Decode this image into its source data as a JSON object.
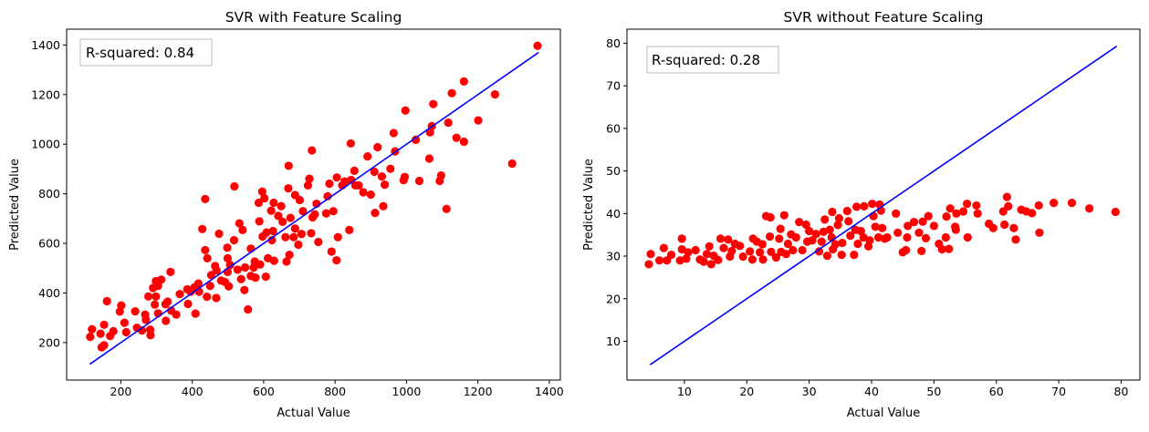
{
  "chart_data": [
    {
      "type": "scatter",
      "title": "SVR with Feature Scaling",
      "xlabel": "Actual Value",
      "ylabel": "Predicted Value",
      "xlim": [
        48,
        1431
      ],
      "ylim": [
        49,
        1464
      ],
      "xticks": [
        200,
        400,
        600,
        800,
        1000,
        1200,
        1400
      ],
      "yticks": [
        200,
        400,
        600,
        800,
        1000,
        1200,
        1400
      ],
      "annotation": "R-squared: 0.84",
      "grid": false,
      "point_color": "#ff0000",
      "line_color": "#0000ff",
      "reference_line": {
        "x": [
          113,
          1370
        ],
        "y": [
          113,
          1370
        ]
      },
      "points": [
        [
          114,
          223
        ],
        [
          119,
          254
        ],
        [
          143,
          236
        ],
        [
          146,
          181
        ],
        [
          153,
          189
        ],
        [
          153,
          272
        ],
        [
          161,
          367
        ],
        [
          170,
          227
        ],
        [
          179,
          246
        ],
        [
          197,
          325
        ],
        [
          201,
          350
        ],
        [
          210,
          280
        ],
        [
          215,
          242
        ],
        [
          240,
          326
        ],
        [
          245,
          260
        ],
        [
          259,
          249
        ],
        [
          268,
          313
        ],
        [
          270,
          292
        ],
        [
          277,
          386
        ],
        [
          282,
          252
        ],
        [
          283,
          230
        ],
        [
          290,
          420
        ],
        [
          295,
          353
        ],
        [
          298,
          448
        ],
        [
          298,
          386
        ],
        [
          304,
          429
        ],
        [
          304,
          318
        ],
        [
          313,
          454
        ],
        [
          325,
          355
        ],
        [
          326,
          288
        ],
        [
          331,
          365
        ],
        [
          339,
          485
        ],
        [
          341,
          329
        ],
        [
          355,
          313
        ],
        [
          365,
          396
        ],
        [
          386,
          415
        ],
        [
          388,
          356
        ],
        [
          395,
          405
        ],
        [
          406,
          423
        ],
        [
          409,
          317
        ],
        [
          417,
          438
        ],
        [
          419,
          405
        ],
        [
          428,
          658
        ],
        [
          436,
          779
        ],
        [
          436,
          573
        ],
        [
          441,
          385
        ],
        [
          442,
          540
        ],
        [
          450,
          429
        ],
        [
          453,
          472
        ],
        [
          464,
          509
        ],
        [
          467,
          380
        ],
        [
          468,
          491
        ],
        [
          475,
          639
        ],
        [
          481,
          450
        ],
        [
          492,
          444
        ],
        [
          498,
          583
        ],
        [
          499,
          540
        ],
        [
          499,
          485
        ],
        [
          502,
          427
        ],
        [
          506,
          513
        ],
        [
          517,
          613
        ],
        [
          518,
          830
        ],
        [
          527,
          494
        ],
        [
          532,
          681
        ],
        [
          537,
          456
        ],
        [
          541,
          654
        ],
        [
          546,
          412
        ],
        [
          548,
          503
        ],
        [
          556,
          334
        ],
        [
          564,
          579
        ],
        [
          564,
          469
        ],
        [
          572,
          503
        ],
        [
          575,
          527
        ],
        [
          577,
          462
        ],
        [
          586,
          764
        ],
        [
          588,
          689
        ],
        [
          590,
          515
        ],
        [
          596,
          809
        ],
        [
          597,
          628
        ],
        [
          602,
          782
        ],
        [
          606,
          466
        ],
        [
          608,
          644
        ],
        [
          612,
          540
        ],
        [
          621,
          732
        ],
        [
          623,
          613
        ],
        [
          626,
          650
        ],
        [
          628,
          764
        ],
        [
          629,
          530
        ],
        [
          641,
          711
        ],
        [
          649,
          750
        ],
        [
          653,
          687
        ],
        [
          661,
          625
        ],
        [
          664,
          527
        ],
        [
          669,
          822
        ],
        [
          670,
          913
        ],
        [
          672,
          554
        ],
        [
          675,
          703
        ],
        [
          684,
          625
        ],
        [
          688,
          795
        ],
        [
          688,
          660
        ],
        [
          697,
          595
        ],
        [
          701,
          775
        ],
        [
          706,
          638
        ],
        [
          710,
          730
        ],
        [
          724,
          834
        ],
        [
          728,
          861
        ],
        [
          733,
          641
        ],
        [
          735,
          975
        ],
        [
          737,
          705
        ],
        [
          743,
          717
        ],
        [
          748,
          760
        ],
        [
          753,
          606
        ],
        [
          775,
          721
        ],
        [
          779,
          790
        ],
        [
          784,
          841
        ],
        [
          790,
          567
        ],
        [
          795,
          730
        ],
        [
          804,
          532
        ],
        [
          805,
          866
        ],
        [
          808,
          625
        ],
        [
          820,
          834
        ],
        [
          827,
          850
        ],
        [
          840,
          654
        ],
        [
          844,
          1003
        ],
        [
          845,
          856
        ],
        [
          854,
          893
        ],
        [
          857,
          834
        ],
        [
          866,
          834
        ],
        [
          879,
          806
        ],
        [
          891,
          951
        ],
        [
          900,
          797
        ],
        [
          910,
          889
        ],
        [
          912,
          723
        ],
        [
          919,
          988
        ],
        [
          931,
          870
        ],
        [
          935,
          750
        ],
        [
          939,
          837
        ],
        [
          955,
          901
        ],
        [
          964,
          1045
        ],
        [
          968,
          971
        ],
        [
          992,
          855
        ],
        [
          995,
          868
        ],
        [
          997,
          1136
        ],
        [
          1026,
          1018
        ],
        [
          1036,
          852
        ],
        [
          1064,
          942
        ],
        [
          1066,
          1048
        ],
        [
          1071,
          1073
        ],
        [
          1075,
          1162
        ],
        [
          1093,
          852
        ],
        [
          1097,
          874
        ],
        [
          1112,
          739
        ],
        [
          1117,
          1087
        ],
        [
          1127,
          1206
        ],
        [
          1140,
          1026
        ],
        [
          1161,
          1253
        ],
        [
          1161,
          1010
        ],
        [
          1201,
          1096
        ],
        [
          1248,
          1201
        ],
        [
          1296,
          922
        ],
        [
          1367,
          1397
        ]
      ]
    },
    {
      "type": "scatter",
      "title": "SVR without Feature Scaling",
      "xlabel": "Actual Value",
      "ylabel": "Predicted Value",
      "xlim": [
        0.8,
        83
      ],
      "ylim": [
        0.9,
        83.3
      ],
      "xticks": [
        10,
        20,
        30,
        40,
        50,
        60,
        70,
        80
      ],
      "yticks": [
        10,
        20,
        30,
        40,
        50,
        60,
        70,
        80
      ],
      "annotation": "R-squared: 0.28",
      "grid": false,
      "point_color": "#ff0000",
      "line_color": "#0000ff",
      "reference_line": {
        "x": [
          4.5,
          79.3
        ],
        "y": [
          4.5,
          79.3
        ]
      },
      "points": [
        [
          4.3,
          28.1
        ],
        [
          4.6,
          30.5
        ],
        [
          6.0,
          29.0
        ],
        [
          6.7,
          31.9
        ],
        [
          7.2,
          29.0
        ],
        [
          7.9,
          30.3
        ],
        [
          9.3,
          29.0
        ],
        [
          9.6,
          34.1
        ],
        [
          9.6,
          31.6
        ],
        [
          10.3,
          29.4
        ],
        [
          10.6,
          30.9
        ],
        [
          11.8,
          31.4
        ],
        [
          12.5,
          29.2
        ],
        [
          13.1,
          28.7
        ],
        [
          13.6,
          30.5
        ],
        [
          14.0,
          32.3
        ],
        [
          14.3,
          28.1
        ],
        [
          14.7,
          30.1
        ],
        [
          15.4,
          29.1
        ],
        [
          15.8,
          34.1
        ],
        [
          16.3,
          31.9
        ],
        [
          17.0,
          33.9
        ],
        [
          17.3,
          29.9
        ],
        [
          17.6,
          31.2
        ],
        [
          18.1,
          32.9
        ],
        [
          18.9,
          32.4
        ],
        [
          19.4,
          29.9
        ],
        [
          20.5,
          31.1
        ],
        [
          20.9,
          29.2
        ],
        [
          21.0,
          34.1
        ],
        [
          21.6,
          33.4
        ],
        [
          22.1,
          30.9
        ],
        [
          22.5,
          32.8
        ],
        [
          22.6,
          29.2
        ],
        [
          23.1,
          39.4
        ],
        [
          23.7,
          34.6
        ],
        [
          23.8,
          39.1
        ],
        [
          23.9,
          31.0
        ],
        [
          24.7,
          29.7
        ],
        [
          25.2,
          34.1
        ],
        [
          25.4,
          36.4
        ],
        [
          25.5,
          31.0
        ],
        [
          26.0,
          39.6
        ],
        [
          26.3,
          30.5
        ],
        [
          26.6,
          32.9
        ],
        [
          27.1,
          35.1
        ],
        [
          27.4,
          31.4
        ],
        [
          27.9,
          34.4
        ],
        [
          28.4,
          38.0
        ],
        [
          28.9,
          31.4
        ],
        [
          29.5,
          37.4
        ],
        [
          29.7,
          33.4
        ],
        [
          30.0,
          35.9
        ],
        [
          30.5,
          33.7
        ],
        [
          31.1,
          35.2
        ],
        [
          31.6,
          31.1
        ],
        [
          32.0,
          33.4
        ],
        [
          32.3,
          35.7
        ],
        [
          32.5,
          38.6
        ],
        [
          32.9,
          30.1
        ],
        [
          33.3,
          36.2
        ],
        [
          33.6,
          34.4
        ],
        [
          33.7,
          40.4
        ],
        [
          33.8,
          31.6
        ],
        [
          34.2,
          32.8
        ],
        [
          34.6,
          37.3
        ],
        [
          34.8,
          38.9
        ],
        [
          35.2,
          30.3
        ],
        [
          35.3,
          33.1
        ],
        [
          36.1,
          40.6
        ],
        [
          36.3,
          38.2
        ],
        [
          36.6,
          34.8
        ],
        [
          37.2,
          30.3
        ],
        [
          37.4,
          36.2
        ],
        [
          37.6,
          41.6
        ],
        [
          37.8,
          32.9
        ],
        [
          38.3,
          35.9
        ],
        [
          38.7,
          34.4
        ],
        [
          38.8,
          41.7
        ],
        [
          39.5,
          32.3
        ],
        [
          39.7,
          33.7
        ],
        [
          40.1,
          42.3
        ],
        [
          40.3,
          39.4
        ],
        [
          40.6,
          36.9
        ],
        [
          41.1,
          34.4
        ],
        [
          41.3,
          42.1
        ],
        [
          41.5,
          40.7
        ],
        [
          41.7,
          36.6
        ],
        [
          42.1,
          34.1
        ],
        [
          42.5,
          34.4
        ],
        [
          43.9,
          40.0
        ],
        [
          44.2,
          35.5
        ],
        [
          45.0,
          30.9
        ],
        [
          45.5,
          31.4
        ],
        [
          45.7,
          34.4
        ],
        [
          45.8,
          37.1
        ],
        [
          46.8,
          38.0
        ],
        [
          47.6,
          35.5
        ],
        [
          48.0,
          31.2
        ],
        [
          48.2,
          38.1
        ],
        [
          48.7,
          34.2
        ],
        [
          49.1,
          39.4
        ],
        [
          50.0,
          37.1
        ],
        [
          50.8,
          32.9
        ],
        [
          51.3,
          31.6
        ],
        [
          51.9,
          34.4
        ],
        [
          52.0,
          39.3
        ],
        [
          52.4,
          31.7
        ],
        [
          52.6,
          41.2
        ],
        [
          53.4,
          36.9
        ],
        [
          53.5,
          36.2
        ],
        [
          53.6,
          40.0
        ],
        [
          54.7,
          40.5
        ],
        [
          55.3,
          42.3
        ],
        [
          55.4,
          34.4
        ],
        [
          56.8,
          41.9
        ],
        [
          57.0,
          40.0
        ],
        [
          58.8,
          37.6
        ],
        [
          59.5,
          36.6
        ],
        [
          61.1,
          40.5
        ],
        [
          61.3,
          37.4
        ],
        [
          61.7,
          43.9
        ],
        [
          61.9,
          41.7
        ],
        [
          62.8,
          36.6
        ],
        [
          63.1,
          33.9
        ],
        [
          64.0,
          40.9
        ],
        [
          64.8,
          40.5
        ],
        [
          65.7,
          40.1
        ],
        [
          66.8,
          41.9
        ],
        [
          66.9,
          35.5
        ],
        [
          69.2,
          42.5
        ],
        [
          72.1,
          42.5
        ],
        [
          74.9,
          41.2
        ],
        [
          79.1,
          40.4
        ]
      ]
    }
  ]
}
